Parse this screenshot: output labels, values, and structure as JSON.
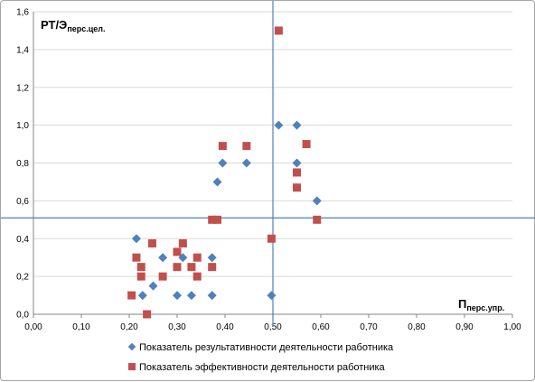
{
  "chart_data": {
    "type": "scatter",
    "title": "",
    "ylabel_main": "РТ/Э",
    "ylabel_sub": "перс.цел.",
    "xlabel_main": "П",
    "xlabel_sub": "перс.упр.",
    "xlim": [
      0,
      1.0
    ],
    "ylim": [
      0,
      1.6
    ],
    "x_ticks": [
      "0,00",
      "0,10",
      "0,20",
      "0,30",
      "0,40",
      "0,50",
      "0,60",
      "0,70",
      "0,80",
      "0,90",
      "1,00"
    ],
    "y_ticks": [
      "0,0",
      "0,2",
      "0,4",
      "0,6",
      "0,8",
      "1,0",
      "1,2",
      "1,4",
      "1,6"
    ],
    "grid": "horizontal",
    "reference_lines": {
      "x": 0.5,
      "y": 0.51
    },
    "legend_position": "bottom",
    "series": [
      {
        "name": "Показатель результативности деятельности работника",
        "marker": "diamond",
        "color": "#4f81bd",
        "points": [
          [
            0.215,
            0.4
          ],
          [
            0.228,
            0.1
          ],
          [
            0.25,
            0.15
          ],
          [
            0.27,
            0.3
          ],
          [
            0.3,
            0.1
          ],
          [
            0.312,
            0.3
          ],
          [
            0.33,
            0.1
          ],
          [
            0.373,
            0.3
          ],
          [
            0.373,
            0.1
          ],
          [
            0.384,
            0.7
          ],
          [
            0.395,
            0.8
          ],
          [
            0.445,
            0.8
          ],
          [
            0.497,
            0.1
          ],
          [
            0.512,
            1.0
          ],
          [
            0.55,
            1.0
          ],
          [
            0.55,
            0.8
          ],
          [
            0.592,
            0.6
          ]
        ]
      },
      {
        "name": "Показатель эффективности деятельности работника",
        "marker": "square",
        "color": "#c0504d",
        "points": [
          [
            0.205,
            0.1
          ],
          [
            0.215,
            0.3
          ],
          [
            0.225,
            0.25
          ],
          [
            0.225,
            0.2
          ],
          [
            0.237,
            0.0
          ],
          [
            0.248,
            0.375
          ],
          [
            0.27,
            0.2
          ],
          [
            0.3,
            0.33
          ],
          [
            0.3,
            0.25
          ],
          [
            0.312,
            0.375
          ],
          [
            0.33,
            0.25
          ],
          [
            0.342,
            0.3
          ],
          [
            0.342,
            0.2
          ],
          [
            0.373,
            0.25
          ],
          [
            0.373,
            0.5
          ],
          [
            0.384,
            0.5
          ],
          [
            0.395,
            0.89
          ],
          [
            0.445,
            0.89
          ],
          [
            0.497,
            0.4
          ],
          [
            0.512,
            1.5
          ],
          [
            0.55,
            0.75
          ],
          [
            0.55,
            0.67
          ],
          [
            0.57,
            0.9
          ],
          [
            0.592,
            0.5
          ]
        ]
      }
    ]
  }
}
